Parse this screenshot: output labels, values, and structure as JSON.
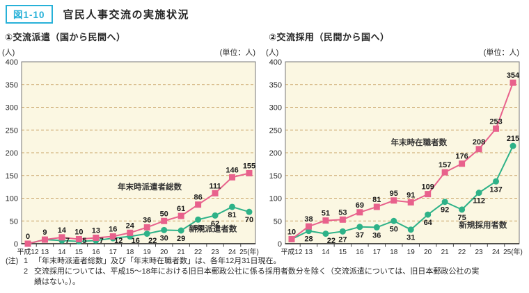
{
  "header": {
    "badge": "図1-10",
    "title": "官民人事交流の実施状況"
  },
  "colors": {
    "accent_cyan": "#27b1d8",
    "pink": "#e8618c",
    "green": "#2eb288",
    "grid": "#c9a468",
    "plot_bg": "#fbf7e2",
    "axis": "#1a1a1a",
    "box": "#777777",
    "label_text": "#1a1a1a"
  },
  "chart_data": [
    {
      "type": "line",
      "title": "①交流派遣（国から民間へ）",
      "unit_left": "(人)",
      "unit_right": "(単位：人)",
      "categories": [
        "平成12",
        "13",
        "14",
        "15",
        "16",
        "17",
        "18",
        "19",
        "20",
        "21",
        "22",
        "23",
        "24",
        "25(年)"
      ],
      "ylim": [
        0,
        400
      ],
      "yticks": [
        0,
        50,
        100,
        150,
        200,
        250,
        300,
        350,
        400
      ],
      "grid": "dashed-horizontal",
      "plot_bg": "#fbf7e2",
      "series": [
        {
          "name": "年末時派遣者総数",
          "marker": "square",
          "color": "#e8618c",
          "label_side": "above",
          "label_side_overrides": {},
          "values": [
            0,
            9,
            14,
            10,
            13,
            16,
            24,
            36,
            50,
            61,
            86,
            111,
            146,
            155
          ],
          "labels": [
            "0",
            "9",
            "14",
            "10",
            "13",
            "16",
            "24",
            "36",
            "50",
            "61",
            "86",
            "111",
            "146",
            "155"
          ]
        },
        {
          "name": "新規派遣者数",
          "marker": "circle",
          "color": "#2eb288",
          "label_side": "below",
          "label_side_overrides": {},
          "values": [
            0,
            9,
            7,
            5,
            7,
            12,
            16,
            22,
            30,
            29,
            53,
            62,
            81,
            70
          ],
          "labels": [
            null,
            null,
            "7",
            "5",
            "7",
            "12",
            "16",
            "22",
            "30",
            "29",
            "53",
            "62",
            "81",
            "70"
          ]
        }
      ],
      "annotations": [
        {
          "series": 0,
          "fx": 0.548,
          "value": 119
        },
        {
          "series": 1,
          "fx": 0.818,
          "value": 27
        }
      ]
    },
    {
      "type": "line",
      "title": "②交流採用（民間から国へ）",
      "unit_left": "(人)",
      "unit_right": "(単位：人)",
      "categories": [
        "平成12",
        "13",
        "14",
        "15",
        "16",
        "17",
        "18",
        "19",
        "20",
        "21",
        "22",
        "23",
        "24",
        "25(年)"
      ],
      "ylim": [
        0,
        400
      ],
      "yticks": [
        0,
        50,
        100,
        150,
        200,
        250,
        300,
        350,
        400
      ],
      "grid": "dashed-horizontal",
      "plot_bg": "#fbf7e2",
      "series": [
        {
          "name": "年末時在職者数",
          "marker": "square",
          "color": "#e8618c",
          "label_side": "above",
          "label_side_overrides": {},
          "values": [
            10,
            38,
            51,
            53,
            69,
            81,
            95,
            91,
            109,
            157,
            176,
            208,
            253,
            354
          ],
          "labels": [
            "10",
            "38",
            "51",
            "53",
            "69",
            "81",
            "95",
            "91",
            "109",
            "157",
            "176",
            "208",
            "253",
            "354"
          ]
        },
        {
          "name": "新規採用者数",
          "marker": "circle",
          "color": "#2eb288",
          "label_side": "below",
          "label_side_overrides": {
            "13": "above"
          },
          "values": [
            10,
            28,
            22,
            27,
            37,
            36,
            50,
            31,
            64,
            92,
            75,
            112,
            137,
            215
          ],
          "labels": [
            null,
            "28",
            "22",
            "27",
            "37",
            "36",
            "50",
            "31",
            "64",
            "92",
            "75",
            "112",
            "137",
            "215"
          ]
        }
      ],
      "annotations": [
        {
          "series": 0,
          "fx": 0.571,
          "value": 217
        },
        {
          "series": 1,
          "fx": 0.845,
          "value": 35
        }
      ]
    }
  ],
  "notes": {
    "label": "(注)",
    "items": [
      {
        "num": "1",
        "text": "「年末時派遣者総数」及び「年末時在職者数」は、各年12月31日現在。"
      },
      {
        "num": "2",
        "text": "交流採用については、平成15～18年における旧日本郵政公社に係る採用者数分を除く（交流派遣については、旧日本郵政公社の実績はない。）。"
      }
    ]
  }
}
